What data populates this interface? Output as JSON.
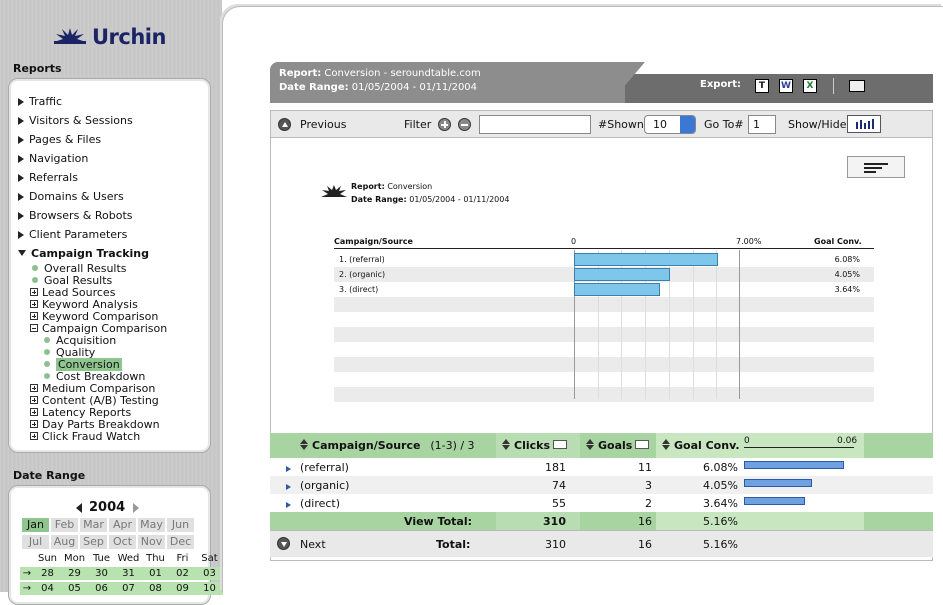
{
  "app": {
    "logo_text": "Urchin"
  },
  "sidebar": {
    "reports_heading": "Reports",
    "items": [
      {
        "label": "Traffic"
      },
      {
        "label": "Visitors & Sessions"
      },
      {
        "label": "Pages & Files"
      },
      {
        "label": "Navigation"
      },
      {
        "label": "Referrals"
      },
      {
        "label": "Domains & Users"
      },
      {
        "label": "Browsers & Robots"
      },
      {
        "label": "Client Parameters"
      },
      {
        "label": "Campaign Tracking"
      }
    ],
    "sub": [
      {
        "label": "Overall Results"
      },
      {
        "label": "Goal Results"
      },
      {
        "label": "Lead Sources"
      },
      {
        "label": "Keyword Analysis"
      },
      {
        "label": "Keyword Comparison"
      },
      {
        "label": "Campaign Comparison"
      },
      {
        "label": "Acquisition"
      },
      {
        "label": "Quality"
      },
      {
        "label": "Conversion"
      },
      {
        "label": "Cost Breakdown"
      },
      {
        "label": "Medium Comparison"
      },
      {
        "label": "Content (A/B) Testing"
      },
      {
        "label": "Latency Reports"
      },
      {
        "label": "Day Parts Breakdown"
      },
      {
        "label": "Click Fraud Watch"
      }
    ],
    "date_heading": "Date Range",
    "calendar": {
      "year": "2004",
      "months": [
        "Jan",
        "Feb",
        "Mar",
        "Apr",
        "May",
        "Jun",
        "Jul",
        "Aug",
        "Sep",
        "Oct",
        "Nov",
        "Dec"
      ],
      "weekdays": [
        "Sun",
        "Mon",
        "Tue",
        "Wed",
        "Thu",
        "Fri",
        "Sat"
      ],
      "week1": [
        "28",
        "29",
        "30",
        "31",
        "01",
        "02",
        "03"
      ],
      "week2": [
        "04",
        "05",
        "06",
        "07",
        "08",
        "09",
        "10"
      ]
    }
  },
  "header": {
    "report_label": "Report:",
    "report_value": "Conversion - seroundtable.com",
    "range_label": "Date Range:",
    "range_value": "01/05/2004 - 01/11/2004",
    "export_label": "Export:"
  },
  "toolbar": {
    "previous": "Previous",
    "filter": "Filter",
    "shown_label": "#Shown",
    "shown_value": "10",
    "goto_label": "Go To#",
    "goto_value": "1",
    "showhide": "Show/Hide"
  },
  "graph": {
    "report_label": "Report:",
    "report_value": "Conversion",
    "range_label": "Date Range:",
    "range_value": "01/05/2004 - 01/11/2004",
    "col_label": "Campaign/Source",
    "axis_min": "0",
    "axis_max": "7.00%",
    "goal_label": "Goal Conv.",
    "rows": [
      {
        "label": "1. (referral)",
        "value_text": "6.08%",
        "value": 6.08
      },
      {
        "label": "2. (organic)",
        "value_text": "4.05%",
        "value": 4.05
      },
      {
        "label": "3. (direct)",
        "value_text": "3.64%",
        "value": 3.64
      }
    ]
  },
  "table": {
    "col1": "Campaign/Source",
    "range": "(1-3) / 3",
    "col2": "Clicks",
    "col3": "Goals",
    "col4": "Goal Conv.",
    "scale_min": "0",
    "scale_max": "0.06",
    "rows": [
      {
        "name": "(referral)",
        "clicks": "181",
        "goals": "11",
        "conv": "6.08%",
        "frac": 0.0608
      },
      {
        "name": "(organic)",
        "clicks": "74",
        "goals": "3",
        "conv": "4.05%",
        "frac": 0.0405
      },
      {
        "name": "(direct)",
        "clicks": "55",
        "goals": "2",
        "conv": "3.64%",
        "frac": 0.0364
      }
    ],
    "view_total_label": "View Total:",
    "view_total": {
      "clicks": "310",
      "goals": "16",
      "conv": "5.16%"
    },
    "next": "Next",
    "total_label": "Total:",
    "total": {
      "clicks": "310",
      "goals": "16",
      "conv": "5.16%"
    }
  },
  "colors": {
    "accent_green": "#a7d4a0",
    "bar_blue": "#7fc7ea",
    "header_gray": "#8d8d8d"
  }
}
